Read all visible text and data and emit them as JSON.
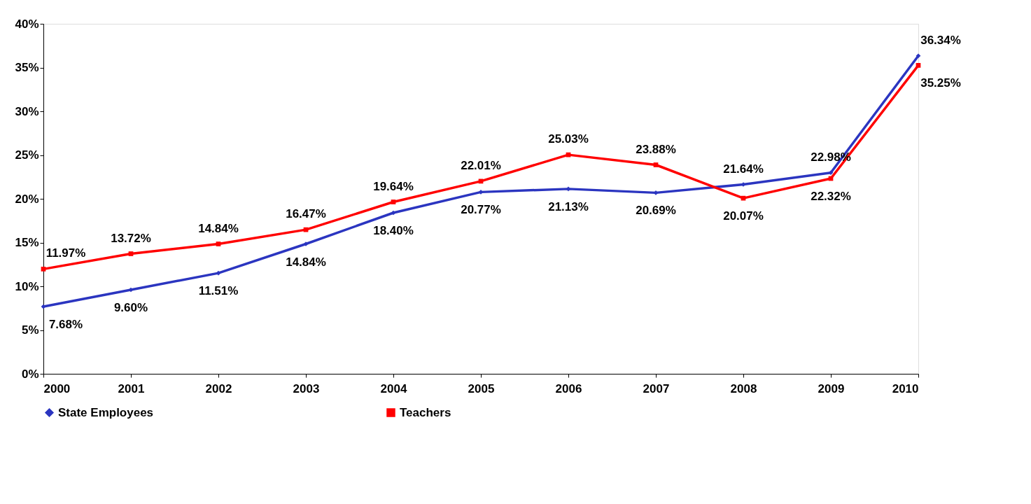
{
  "chart_data": {
    "type": "line",
    "categories": [
      "2000",
      "2001",
      "2002",
      "2003",
      "2004",
      "2005",
      "2006",
      "2007",
      "2008",
      "2009",
      "2010"
    ],
    "series": [
      {
        "name": "State Employees",
        "color": "#2b35c0",
        "marker": "diamond",
        "values": [
          7.68,
          9.6,
          11.51,
          14.84,
          18.4,
          20.77,
          21.13,
          20.69,
          21.64,
          22.98,
          36.34
        ],
        "value_labels": [
          "7.68%",
          "9.60%",
          "11.51%",
          "14.84%",
          "18.40%",
          "20.77%",
          "21.13%",
          "20.69%",
          "21.64%",
          "22.98%",
          "36.34%"
        ]
      },
      {
        "name": "Teachers",
        "color": "#ff0000",
        "marker": "square",
        "values": [
          11.97,
          13.72,
          14.84,
          16.47,
          19.64,
          22.01,
          25.03,
          23.88,
          20.07,
          22.32,
          35.25
        ],
        "value_labels": [
          "11.97%",
          "13.72%",
          "14.84%",
          "16.47%",
          "19.64%",
          "22.01%",
          "25.03%",
          "23.88%",
          "20.07%",
          "22.32%",
          "35.25%"
        ]
      }
    ],
    "ylim": [
      0,
      40
    ],
    "yticks": [
      {
        "value": 0,
        "label": "0%"
      },
      {
        "value": 5,
        "label": "5%"
      },
      {
        "value": 10,
        "label": "10%"
      },
      {
        "value": 15,
        "label": "15%"
      },
      {
        "value": 20,
        "label": "20%"
      },
      {
        "value": 25,
        "label": "25%"
      },
      {
        "value": 30,
        "label": "30%"
      },
      {
        "value": 35,
        "label": "35%"
      },
      {
        "value": 40,
        "label": "40%"
      }
    ],
    "grid": false,
    "legend": "bottom",
    "line_style": "solid"
  }
}
